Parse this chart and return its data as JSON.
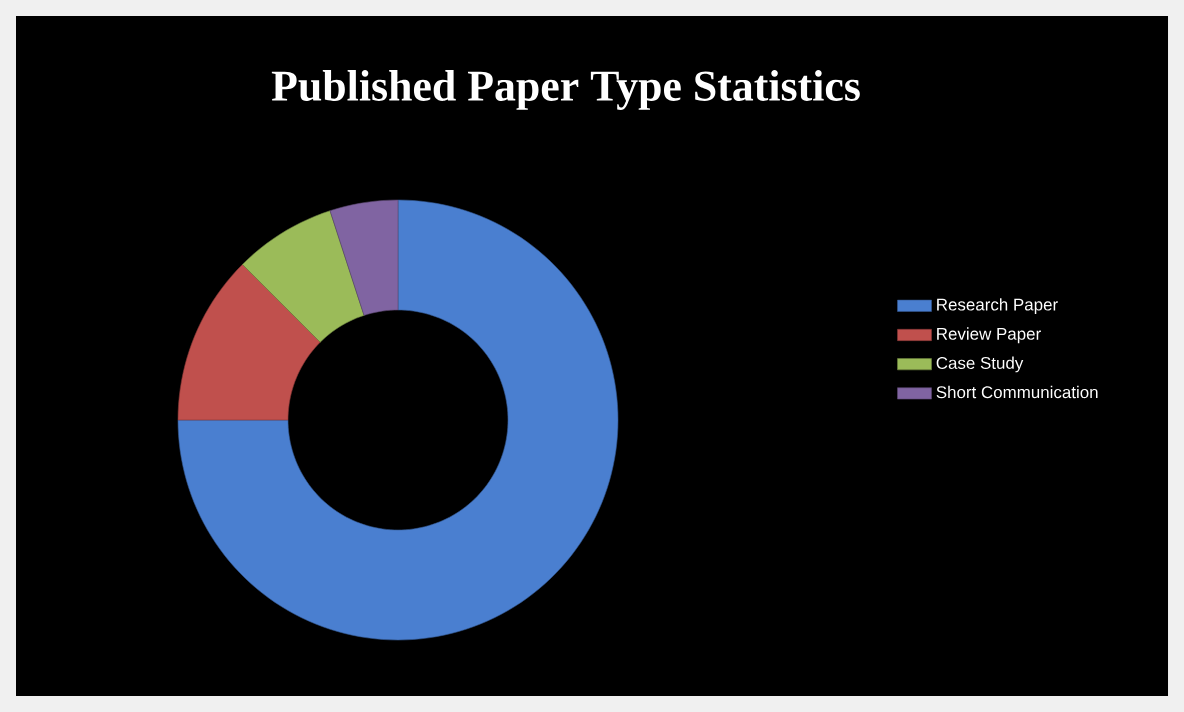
{
  "chart_data": {
    "type": "donut",
    "title": "Published Paper Type Statistics",
    "categories": [
      "Research Paper",
      "Review Paper",
      "Case Study",
      "Short Communication"
    ],
    "values": [
      75,
      12.5,
      7.5,
      5
    ],
    "colors": [
      "#4a7fd0",
      "#c0504d",
      "#9bbb59",
      "#8064a2"
    ],
    "legend": "right"
  }
}
